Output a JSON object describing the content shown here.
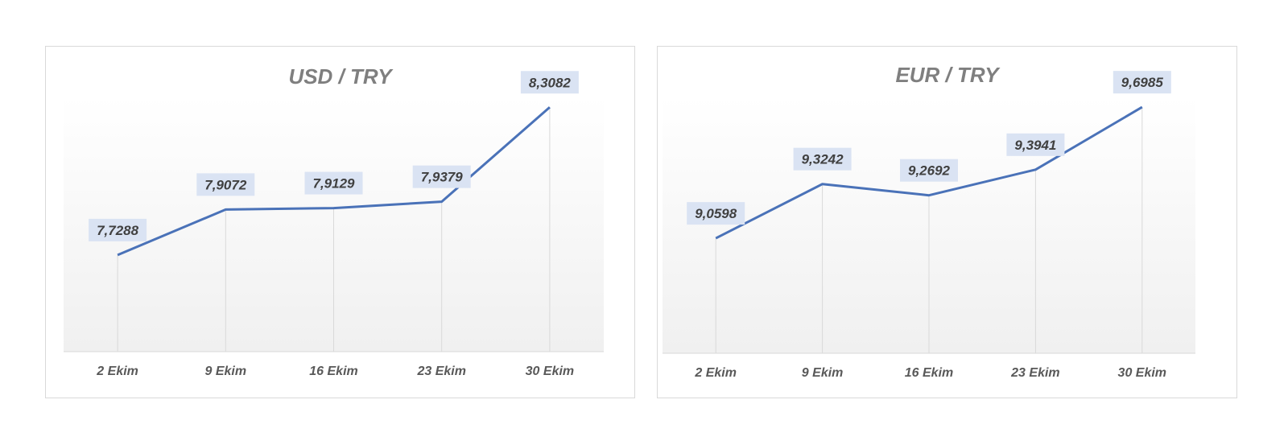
{
  "chart_data": [
    {
      "type": "line",
      "title": "USD / TRY",
      "categories": [
        "2 Ekim",
        "9 Ekim",
        "16 Ekim",
        "23 Ekim",
        "30 Ekim"
      ],
      "values": [
        7.7288,
        7.9072,
        7.9129,
        7.9379,
        8.3082
      ],
      "value_labels": [
        "7,7288",
        "7,9072",
        "7,9129",
        "7,9379",
        "8,3082"
      ],
      "ylim": [
        7.35,
        8.35
      ],
      "grid": false,
      "legend": "none",
      "colors": {
        "line": "#4a72b8",
        "label_bg": "#dae3f3"
      }
    },
    {
      "type": "line",
      "title": "EUR / TRY",
      "categories": [
        "2 Ekim",
        "9 Ekim",
        "16 Ekim",
        "23 Ekim",
        "30 Ekim"
      ],
      "values": [
        9.0598,
        9.3242,
        9.2692,
        9.3941,
        9.6985
      ],
      "value_labels": [
        "9,0598",
        "9,3242",
        "9,2692",
        "9,3941",
        "9,6985"
      ],
      "ylim": [
        8.5,
        9.75
      ],
      "grid": false,
      "legend": "none",
      "colors": {
        "line": "#4a72b8",
        "label_bg": "#dae3f3"
      }
    }
  ]
}
